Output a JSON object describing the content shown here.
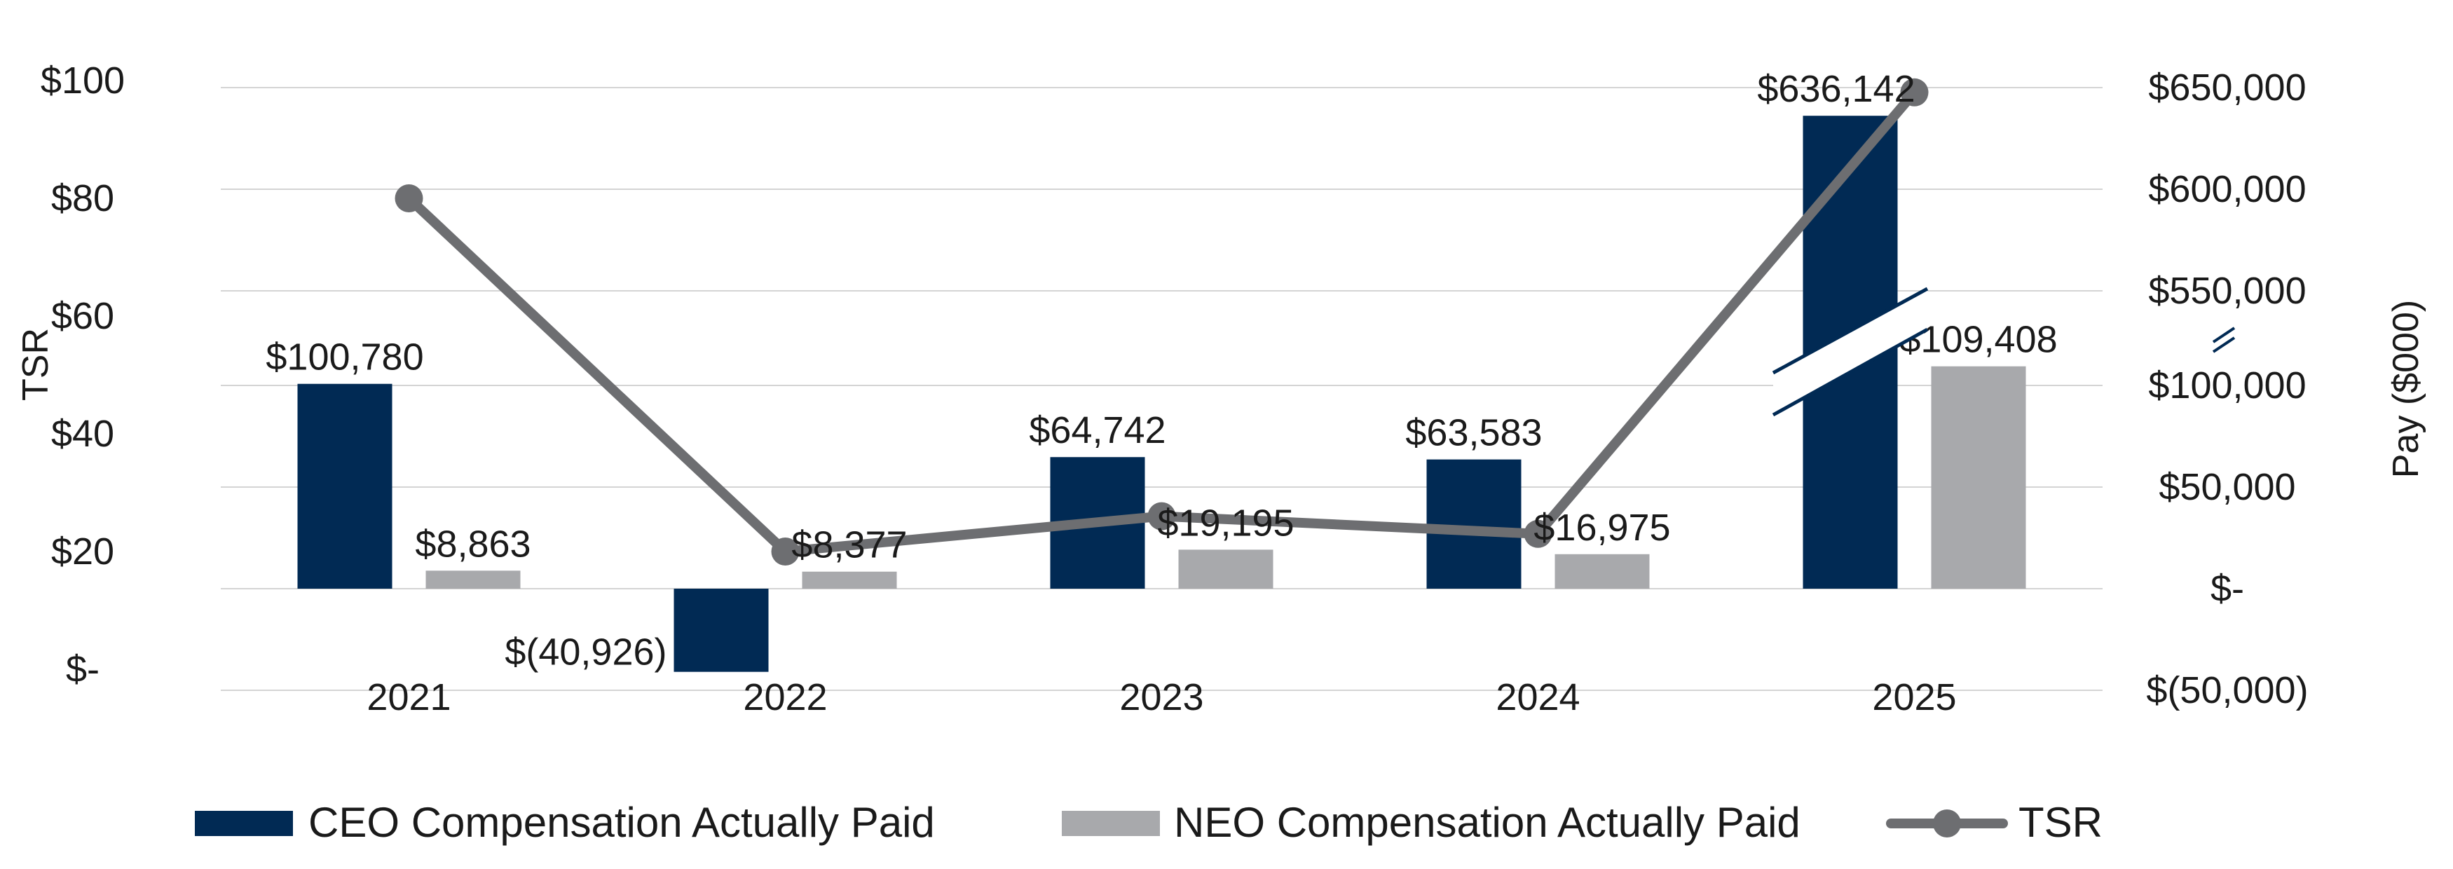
{
  "chart_data": {
    "type": "bar",
    "categories": [
      "2021",
      "2022",
      "2023",
      "2024",
      "2025"
    ],
    "series": [
      {
        "name": "CEO Compensation Actually Paid",
        "kind": "bar",
        "axis": "right",
        "color": "#012a54",
        "values": [
          100780,
          -40926,
          64742,
          63583,
          636142
        ],
        "labels": [
          "$100,780",
          "$(40,926)",
          "$64,742",
          "$63,583",
          "$636,142"
        ]
      },
      {
        "name": "NEO Compensation Actually Paid",
        "kind": "bar",
        "axis": "right",
        "color": "#a8a9ac",
        "values": [
          8863,
          8377,
          19195,
          16975,
          109408
        ],
        "labels": [
          "$8,863",
          "$8,377",
          "$19,195",
          "$16,975",
          "$109,408"
        ]
      },
      {
        "name": "TSR",
        "kind": "line",
        "axis": "left",
        "color": "#6d6e71",
        "values": [
          80,
          20,
          26,
          23,
          98
        ]
      }
    ],
    "y_left": {
      "label": "TSR",
      "range": [
        0,
        100
      ],
      "ticks": [
        0,
        20,
        40,
        60,
        80,
        100
      ],
      "tick_labels": [
        "$-",
        "$20",
        "$40",
        "$60",
        "$80",
        "$100"
      ]
    },
    "y_right": {
      "label": "Pay ($000)",
      "broken": true,
      "lower_range": [
        -50000,
        100000
      ],
      "upper_range": [
        550000,
        650000
      ],
      "ticks": [
        -50000,
        0,
        50000,
        100000,
        550000,
        600000,
        650000
      ],
      "tick_labels": [
        "$(50,000)",
        "$-",
        "$50,000",
        "$100,000",
        "$550,000",
        "$600,000",
        "$650,000"
      ]
    },
    "grid": true,
    "legend": "bottom"
  }
}
